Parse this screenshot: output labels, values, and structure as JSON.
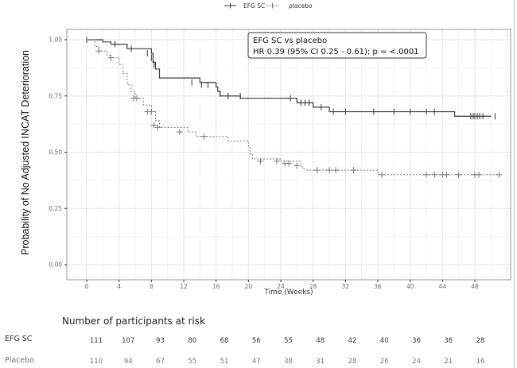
{
  "chart_data": {
    "type": "line",
    "subtype": "kaplan-meier",
    "title": "",
    "xlabel": "Time (Weeks)",
    "ylabel": "Probability of No Adjusted INCAT Deterioration",
    "xlim": [
      -2.5,
      52.5
    ],
    "ylim": [
      -0.05,
      1.05
    ],
    "x_ticks": [
      0,
      4,
      8,
      12,
      16,
      20,
      24,
      28,
      32,
      36,
      40,
      44,
      48
    ],
    "x_tick_labels": [
      "0",
      "4",
      "8",
      "12",
      "16",
      "20",
      "24",
      "28",
      "32",
      "36",
      "40",
      "44",
      "48"
    ],
    "y_ticks": [
      0,
      0.25,
      0.5,
      0.75,
      1.0
    ],
    "y_tick_labels": [
      "0.00",
      "0.25",
      "0.50",
      "0.75",
      "1.00"
    ],
    "grid": true,
    "legend": {
      "placement": "top-center",
      "entries": [
        {
          "label": "EFG SC",
          "style": "solid",
          "marker": "+"
        },
        {
          "label": "placebo",
          "style": "dashed",
          "marker": "+"
        }
      ]
    },
    "annotation": {
      "placement": "top-right",
      "lines": [
        "EFG SC vs placebo",
        "HR 0.39 (95% CI 0.25 - 0.61); p = <.0001"
      ]
    },
    "series": [
      {
        "name": "EFG SC",
        "style": "solid",
        "color": "#3a3a3a",
        "steps": [
          [
            0,
            1.0
          ],
          [
            2.0,
            0.99
          ],
          [
            3.0,
            0.98
          ],
          [
            5.0,
            0.96
          ],
          [
            8.0,
            0.94
          ],
          [
            8.2,
            0.9
          ],
          [
            8.5,
            0.87
          ],
          [
            9.0,
            0.83
          ],
          [
            14.0,
            0.81
          ],
          [
            16.0,
            0.79
          ],
          [
            16.2,
            0.77
          ],
          [
            16.5,
            0.75
          ],
          [
            19.0,
            0.74
          ],
          [
            26.0,
            0.72
          ],
          [
            28.0,
            0.7
          ],
          [
            30.0,
            0.68
          ],
          [
            45.5,
            0.66
          ],
          [
            50.0,
            0.66
          ]
        ],
        "censored": [
          [
            0,
            1.0
          ],
          [
            3.5,
            0.98
          ],
          [
            5.5,
            0.96
          ],
          [
            7.5,
            0.94
          ],
          [
            8.0,
            0.92
          ],
          [
            8.3,
            0.89
          ],
          [
            13.0,
            0.81
          ],
          [
            14.2,
            0.8
          ],
          [
            15.0,
            0.8
          ],
          [
            16.5,
            0.76
          ],
          [
            17.5,
            0.75
          ],
          [
            19.0,
            0.75
          ],
          [
            25.2,
            0.74
          ],
          [
            26.5,
            0.72
          ],
          [
            27.0,
            0.72
          ],
          [
            27.5,
            0.72
          ],
          [
            29.0,
            0.7
          ],
          [
            30.5,
            0.68
          ],
          [
            32.0,
            0.68
          ],
          [
            35.5,
            0.68
          ],
          [
            38.0,
            0.68
          ],
          [
            40.0,
            0.68
          ],
          [
            42.0,
            0.68
          ],
          [
            43.0,
            0.68
          ],
          [
            47.5,
            0.66
          ],
          [
            47.8,
            0.66
          ],
          [
            48.0,
            0.66
          ],
          [
            48.3,
            0.66
          ],
          [
            48.6,
            0.66
          ],
          [
            49.0,
            0.66
          ],
          [
            50.5,
            0.66
          ]
        ]
      },
      {
        "name": "placebo",
        "style": "dashed",
        "color": "#7a7a7a",
        "steps": [
          [
            0,
            1.0
          ],
          [
            1.0,
            0.97
          ],
          [
            1.5,
            0.95
          ],
          [
            2.5,
            0.93
          ],
          [
            3.0,
            0.92
          ],
          [
            4.0,
            0.89
          ],
          [
            4.5,
            0.85
          ],
          [
            5.0,
            0.8
          ],
          [
            5.5,
            0.77
          ],
          [
            6.0,
            0.74
          ],
          [
            7.0,
            0.71
          ],
          [
            8.0,
            0.68
          ],
          [
            8.5,
            0.64
          ],
          [
            9.0,
            0.61
          ],
          [
            12.5,
            0.59
          ],
          [
            13.5,
            0.57
          ],
          [
            17.5,
            0.55
          ],
          [
            20.0,
            0.52
          ],
          [
            20.2,
            0.49
          ],
          [
            20.5,
            0.47
          ],
          [
            24.0,
            0.46
          ],
          [
            26.5,
            0.43
          ],
          [
            27.0,
            0.42
          ],
          [
            36.0,
            0.4
          ],
          [
            51.0,
            0.4
          ]
        ],
        "censored": [
          [
            1.5,
            0.95
          ],
          [
            3.0,
            0.92
          ],
          [
            5.8,
            0.74
          ],
          [
            6.2,
            0.74
          ],
          [
            7.5,
            0.68
          ],
          [
            8.0,
            0.68
          ],
          [
            8.3,
            0.62
          ],
          [
            8.8,
            0.61
          ],
          [
            11.5,
            0.59
          ],
          [
            14.5,
            0.57
          ],
          [
            21.5,
            0.46
          ],
          [
            23.5,
            0.46
          ],
          [
            24.5,
            0.45
          ],
          [
            25.0,
            0.45
          ],
          [
            26.0,
            0.44
          ],
          [
            28.5,
            0.42
          ],
          [
            30.0,
            0.42
          ],
          [
            30.8,
            0.42
          ],
          [
            33.0,
            0.42
          ],
          [
            36.5,
            0.4
          ],
          [
            42.0,
            0.4
          ],
          [
            43.0,
            0.4
          ],
          [
            44.0,
            0.4
          ],
          [
            44.5,
            0.4
          ],
          [
            46.0,
            0.4
          ],
          [
            48.0,
            0.4
          ],
          [
            48.5,
            0.4
          ],
          [
            51.0,
            0.4
          ]
        ]
      }
    ]
  },
  "risk_table": {
    "title": "Number of participants at risk",
    "times": [
      0,
      4,
      8,
      12,
      16,
      20,
      24,
      28,
      32,
      36,
      40,
      44,
      48
    ],
    "rows": [
      {
        "label": "EFG SC",
        "values": [
          "111",
          "107",
          "93",
          "80",
          "68",
          "56",
          "55",
          "48",
          "42",
          "40",
          "36",
          "36",
          "28"
        ]
      },
      {
        "label": "Placebo",
        "values": [
          "110",
          "94",
          "67",
          "55",
          "51",
          "47",
          "38",
          "31",
          "28",
          "26",
          "24",
          "21",
          "16"
        ]
      }
    ]
  }
}
